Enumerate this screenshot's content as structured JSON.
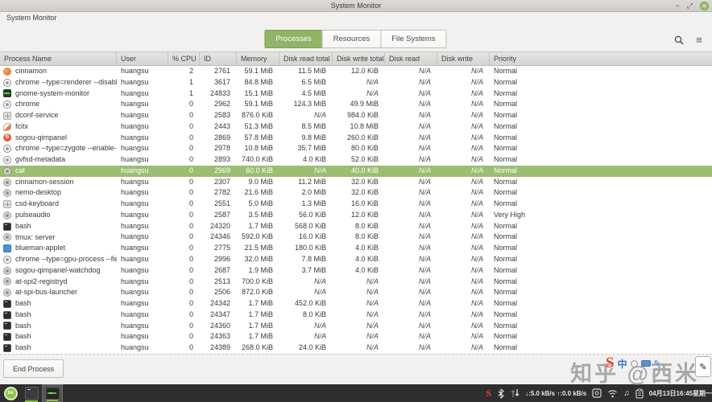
{
  "window": {
    "title": "System Monitor",
    "app_label": "System Monitor",
    "controls": {
      "minimize": "−",
      "maximize": "⤢",
      "close": "✕"
    }
  },
  "toolbar": {
    "tabs": [
      {
        "label": "Processes",
        "active": true
      },
      {
        "label": "Resources",
        "active": false
      },
      {
        "label": "File Systems",
        "active": false
      }
    ],
    "menu_glyph": "≡"
  },
  "table": {
    "sort_indicator": "▼",
    "columns": [
      {
        "label": "Process Name",
        "key": "name",
        "sorted": false
      },
      {
        "label": "User",
        "key": "user",
        "sorted": false
      },
      {
        "label": "% CPU",
        "key": "cpu",
        "sorted": true
      },
      {
        "label": "ID",
        "key": "id",
        "sorted": false
      },
      {
        "label": "Memory",
        "key": "mem",
        "sorted": false
      },
      {
        "label": "Disk read total",
        "key": "drt",
        "sorted": false
      },
      {
        "label": "Disk write total",
        "key": "dwt",
        "sorted": false
      },
      {
        "label": "Disk read",
        "key": "dr",
        "sorted": false
      },
      {
        "label": "Disk write",
        "key": "dw",
        "sorted": false
      },
      {
        "label": "Priority",
        "key": "pri",
        "sorted": false
      }
    ],
    "rows": [
      {
        "icon": "cinnamon",
        "name": "cinnamon",
        "user": "huangsu",
        "cpu": "2",
        "id": "2761",
        "mem": "59.1 MiB",
        "drt": "11.5 MiB",
        "dwt": "12.0 KiB",
        "dr": "N/A",
        "dw": "N/A",
        "pri": "Normal",
        "selected": false
      },
      {
        "icon": "chrome",
        "name": "chrome --type=renderer --disable-we",
        "user": "huangsu",
        "cpu": "1",
        "id": "3617",
        "mem": "84.8 MiB",
        "drt": "6.5 MiB",
        "dwt": "N/A",
        "dr": "N/A",
        "dw": "N/A",
        "pri": "Normal",
        "selected": false
      },
      {
        "icon": "monitor",
        "name": "gnome-system-monitor",
        "user": "huangsu",
        "cpu": "1",
        "id": "24833",
        "mem": "15.1 MiB",
        "drt": "4.5 MiB",
        "dwt": "N/A",
        "dr": "N/A",
        "dw": "N/A",
        "pri": "Normal",
        "selected": false
      },
      {
        "icon": "chrome",
        "name": "chrome",
        "user": "huangsu",
        "cpu": "0",
        "id": "2962",
        "mem": "59.1 MiB",
        "drt": "124.3 MiB",
        "dwt": "49.9 MiB",
        "dr": "N/A",
        "dw": "N/A",
        "pri": "Normal",
        "selected": false
      },
      {
        "icon": "grid",
        "name": "dconf-service",
        "user": "huangsu",
        "cpu": "0",
        "id": "2583",
        "mem": "876.0 KiB",
        "drt": "N/A",
        "dwt": "984.0 KiB",
        "dr": "N/A",
        "dw": "N/A",
        "pri": "Normal",
        "selected": false
      },
      {
        "icon": "fcitx",
        "name": "fcitx",
        "user": "huangsu",
        "cpu": "0",
        "id": "2443",
        "mem": "51.3 MiB",
        "drt": "8.5 MiB",
        "dwt": "10.8 MiB",
        "dr": "N/A",
        "dw": "N/A",
        "pri": "Normal",
        "selected": false
      },
      {
        "icon": "sogou",
        "name": "sogou-qimpanel",
        "user": "huangsu",
        "cpu": "0",
        "id": "2869",
        "mem": "57.8 MiB",
        "drt": "9.8 MiB",
        "dwt": "260.0 KiB",
        "dr": "N/A",
        "dw": "N/A",
        "pri": "Normal",
        "selected": false
      },
      {
        "icon": "chrome",
        "name": "chrome --type=zygote --enable-crash",
        "user": "huangsu",
        "cpu": "0",
        "id": "2978",
        "mem": "10.8 MiB",
        "drt": "35.7 MiB",
        "dwt": "80.0 KiB",
        "dr": "N/A",
        "dw": "N/A",
        "pri": "Normal",
        "selected": false
      },
      {
        "icon": "chrome",
        "name": "gvfsd-metadata",
        "user": "huangsu",
        "cpu": "0",
        "id": "2893",
        "mem": "740.0 KiB",
        "drt": "4.0 KiB",
        "dwt": "52.0 KiB",
        "dr": "N/A",
        "dw": "N/A",
        "pri": "Normal",
        "selected": false
      },
      {
        "icon": "generic",
        "name": "cat",
        "user": "huangsu",
        "cpu": "0",
        "id": "2969",
        "mem": "60.0 KiB",
        "drt": "N/A",
        "dwt": "40.0 KiB",
        "dr": "N/A",
        "dw": "N/A",
        "pri": "Normal",
        "selected": true
      },
      {
        "icon": "generic",
        "name": "cinnamon-session",
        "user": "huangsu",
        "cpu": "0",
        "id": "2307",
        "mem": "9.0 MiB",
        "drt": "11.2 MiB",
        "dwt": "32.0 KiB",
        "dr": "N/A",
        "dw": "N/A",
        "pri": "Normal",
        "selected": false
      },
      {
        "icon": "generic",
        "name": "nemo-desktop",
        "user": "huangsu",
        "cpu": "0",
        "id": "2782",
        "mem": "21.6 MiB",
        "drt": "2.0 MiB",
        "dwt": "32.0 KiB",
        "dr": "N/A",
        "dw": "N/A",
        "pri": "Normal",
        "selected": false
      },
      {
        "icon": "grid",
        "name": "csd-keyboard",
        "user": "huangsu",
        "cpu": "0",
        "id": "2551",
        "mem": "5.0 MiB",
        "drt": "1.3 MiB",
        "dwt": "16.0 KiB",
        "dr": "N/A",
        "dw": "N/A",
        "pri": "Normal",
        "selected": false
      },
      {
        "icon": "generic",
        "name": "pulseaudio",
        "user": "huangsu",
        "cpu": "0",
        "id": "2587",
        "mem": "3.5 MiB",
        "drt": "56.0 KiB",
        "dwt": "12.0 KiB",
        "dr": "N/A",
        "dw": "N/A",
        "pri": "Very High",
        "selected": false
      },
      {
        "icon": "terminal",
        "name": "bash",
        "user": "huangsu",
        "cpu": "0",
        "id": "24320",
        "mem": "1.7 MiB",
        "drt": "568.0 KiB",
        "dwt": "8.0 KiB",
        "dr": "N/A",
        "dw": "N/A",
        "pri": "Normal",
        "selected": false
      },
      {
        "icon": "generic",
        "name": "tmux: server",
        "user": "huangsu",
        "cpu": "0",
        "id": "24346",
        "mem": "592.0 KiB",
        "drt": "16.0 KiB",
        "dwt": "8.0 KiB",
        "dr": "N/A",
        "dw": "N/A",
        "pri": "Normal",
        "selected": false
      },
      {
        "icon": "blue",
        "name": "blueman-applet",
        "user": "huangsu",
        "cpu": "0",
        "id": "2775",
        "mem": "21.5 MiB",
        "drt": "180.0 KiB",
        "dwt": "4.0 KiB",
        "dr": "N/A",
        "dw": "N/A",
        "pri": "Normal",
        "selected": false
      },
      {
        "icon": "chrome",
        "name": "chrome --type=gpu-process --field-tr",
        "user": "huangsu",
        "cpu": "0",
        "id": "2996",
        "mem": "32.0 MiB",
        "drt": "7.8 MiB",
        "dwt": "4.0 KiB",
        "dr": "N/A",
        "dw": "N/A",
        "pri": "Normal",
        "selected": false
      },
      {
        "icon": "generic",
        "name": "sogou-qimpanel-watchdog",
        "user": "huangsu",
        "cpu": "0",
        "id": "2687",
        "mem": "1.9 MiB",
        "drt": "3.7 MiB",
        "dwt": "4.0 KiB",
        "dr": "N/A",
        "dw": "N/A",
        "pri": "Normal",
        "selected": false
      },
      {
        "icon": "generic",
        "name": "at-spi2-registryd",
        "user": "huangsu",
        "cpu": "0",
        "id": "2513",
        "mem": "700.0 KiB",
        "drt": "N/A",
        "dwt": "N/A",
        "dr": "N/A",
        "dw": "N/A",
        "pri": "Normal",
        "selected": false
      },
      {
        "icon": "generic",
        "name": "at-spi-bus-launcher",
        "user": "huangsu",
        "cpu": "0",
        "id": "2506",
        "mem": "872.0 KiB",
        "drt": "N/A",
        "dwt": "N/A",
        "dr": "N/A",
        "dw": "N/A",
        "pri": "Normal",
        "selected": false
      },
      {
        "icon": "terminal",
        "name": "bash",
        "user": "huangsu",
        "cpu": "0",
        "id": "24342",
        "mem": "1.7 MiB",
        "drt": "452.0 KiB",
        "dwt": "N/A",
        "dr": "N/A",
        "dw": "N/A",
        "pri": "Normal",
        "selected": false
      },
      {
        "icon": "terminal",
        "name": "bash",
        "user": "huangsu",
        "cpu": "0",
        "id": "24347",
        "mem": "1.7 MiB",
        "drt": "8.0 KiB",
        "dwt": "N/A",
        "dr": "N/A",
        "dw": "N/A",
        "pri": "Normal",
        "selected": false
      },
      {
        "icon": "terminal",
        "name": "bash",
        "user": "huangsu",
        "cpu": "0",
        "id": "24360",
        "mem": "1.7 MiB",
        "drt": "N/A",
        "dwt": "N/A",
        "dr": "N/A",
        "dw": "N/A",
        "pri": "Normal",
        "selected": false
      },
      {
        "icon": "terminal",
        "name": "bash",
        "user": "huangsu",
        "cpu": "0",
        "id": "24363",
        "mem": "1.7 MiB",
        "drt": "N/A",
        "dwt": "N/A",
        "dr": "N/A",
        "dw": "N/A",
        "pri": "Normal",
        "selected": false
      },
      {
        "icon": "terminal",
        "name": "bash",
        "user": "huangsu",
        "cpu": "0",
        "id": "24389",
        "mem": "268.0 KiB",
        "drt": "24.0 KiB",
        "dwt": "N/A",
        "dr": "N/A",
        "dw": "N/A",
        "pri": "Normal",
        "selected": false
      }
    ]
  },
  "footer": {
    "end_process_label": "End Process"
  },
  "taskbar": {
    "menu_label": "lm",
    "net_speed": "↓:5.0 kB/s ↑:0.0 kB/s",
    "clock": "04月13日16:45星期一",
    "music_glyph": "♫",
    "sogou_letter": "S"
  },
  "overlay": {
    "watermark": "知乎 @西米",
    "ime": {
      "letter": "S",
      "mode": "中",
      "pen_glyph": "✎",
      "note_glyph": "✎"
    }
  },
  "colors": {
    "accent_green": "#90b566",
    "selection_green": "#9cbd72",
    "mint_green": "#87bf40",
    "taskbar_bg": "#2e2e2e"
  }
}
